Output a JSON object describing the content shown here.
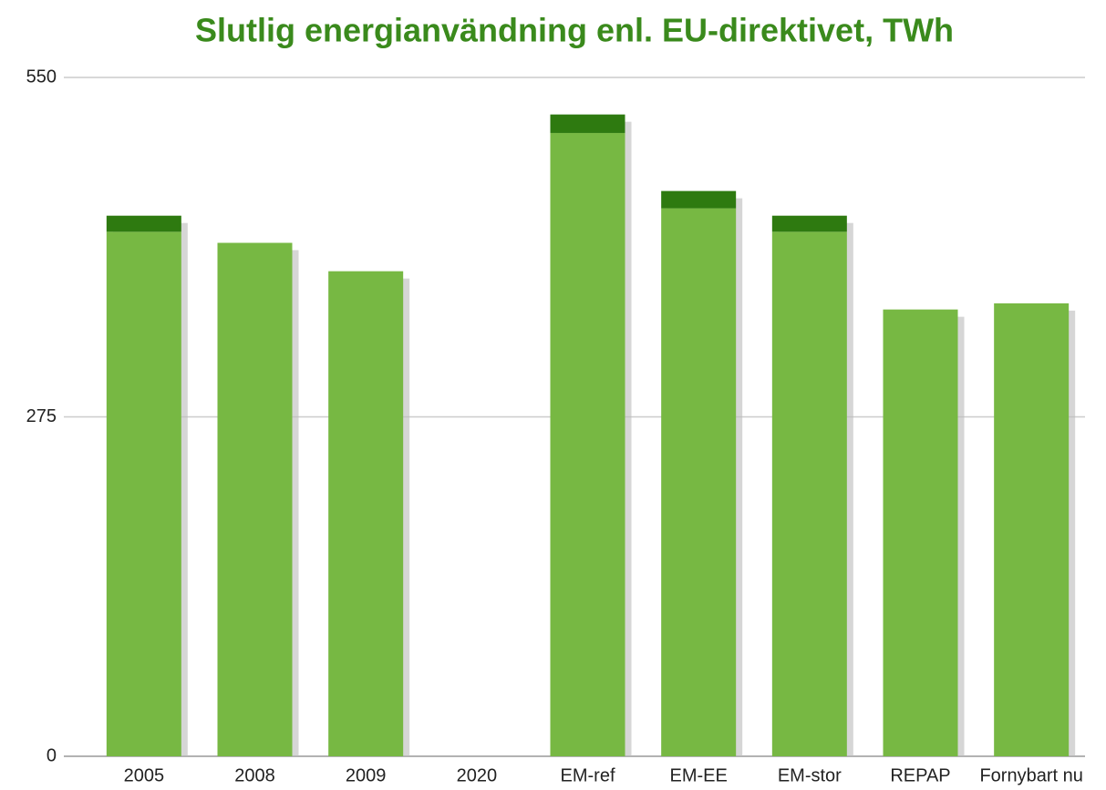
{
  "chart_data": {
    "type": "bar",
    "stacked": true,
    "title": "Slutlig energianvändning enl. EU-direktivet, TWh",
    "categories": [
      "2005",
      "2008",
      "2009",
      "2020",
      "EM-ref",
      "EM-EE",
      "EM-stor",
      "REPAP",
      "Fornybart nu"
    ],
    "series": [
      {
        "color": "#77b843",
        "values": [
          425,
          416,
          393,
          null,
          505,
          444,
          425,
          362,
          367
        ]
      },
      {
        "color": "#2e7a10",
        "values": [
          13,
          null,
          null,
          null,
          15,
          14,
          13,
          null,
          null
        ]
      }
    ],
    "ylim": [
      0,
      550
    ],
    "yticks": [
      0,
      275,
      550
    ],
    "grid": true
  }
}
